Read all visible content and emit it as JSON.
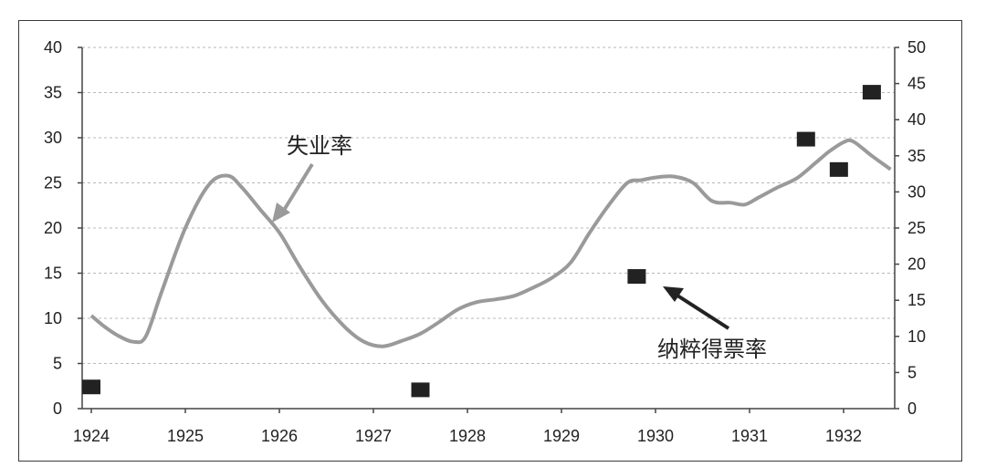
{
  "chart_data": {
    "type": "line",
    "title": "",
    "x_axis": {
      "range": [
        1924,
        1932.55
      ],
      "ticks": [
        1924,
        1925,
        1926,
        1927,
        1928,
        1929,
        1930,
        1931,
        1932
      ],
      "tick_labels": [
        "1924",
        "1925",
        "1926",
        "1927",
        "1928",
        "1929",
        "1930",
        "1931",
        "1932"
      ]
    },
    "y_axis_left": {
      "range": [
        0,
        40
      ],
      "ticks": [
        0,
        5,
        10,
        15,
        20,
        25,
        30,
        35,
        40
      ],
      "tick_labels": [
        "0",
        "5",
        "10",
        "15",
        "20",
        "25",
        "30",
        "35",
        "40"
      ]
    },
    "y_axis_right": {
      "range": [
        0,
        50
      ],
      "ticks": [
        0,
        5,
        10,
        15,
        20,
        25,
        30,
        35,
        40,
        45,
        50
      ],
      "tick_labels": [
        "0",
        "5",
        "10",
        "15",
        "20",
        "25",
        "30",
        "35",
        "40",
        "45",
        "50"
      ]
    },
    "grid": "horizontal dashed",
    "series": [
      {
        "name": "失业率",
        "type": "line",
        "axis": "left",
        "color": "#9a9a9a",
        "x": [
          1924.0,
          1924.15,
          1924.3,
          1924.45,
          1924.58,
          1924.75,
          1925.0,
          1925.25,
          1925.45,
          1925.6,
          1925.8,
          1926.0,
          1926.2,
          1926.45,
          1926.7,
          1926.9,
          1927.1,
          1927.3,
          1927.5,
          1927.7,
          1927.9,
          1928.1,
          1928.3,
          1928.5,
          1928.7,
          1928.9,
          1929.1,
          1929.3,
          1929.5,
          1929.7,
          1929.85,
          1930.0,
          1930.2,
          1930.4,
          1930.6,
          1930.8,
          1930.95,
          1931.1,
          1931.3,
          1931.5,
          1931.7,
          1931.85,
          1932.0,
          1932.1,
          1932.3,
          1932.5
        ],
        "y": [
          10.3,
          9.0,
          8.0,
          7.4,
          8.0,
          13.0,
          20.0,
          24.8,
          25.8,
          24.5,
          22.0,
          19.5,
          16.0,
          12.0,
          9.0,
          7.4,
          6.9,
          7.5,
          8.3,
          9.6,
          11.0,
          11.8,
          12.1,
          12.5,
          13.4,
          14.5,
          16.2,
          19.5,
          22.5,
          25.0,
          25.3,
          25.6,
          25.7,
          25.0,
          23.0,
          22.8,
          22.6,
          23.4,
          24.5,
          25.5,
          27.2,
          28.5,
          29.5,
          29.6,
          28.0,
          26.5
        ]
      },
      {
        "name": "纳粹得票率",
        "type": "scatter",
        "axis": "right",
        "color": "#222222",
        "x": [
          1924.0,
          1927.5,
          1929.8,
          1931.6,
          1931.95,
          1932.3
        ],
        "y": [
          3.0,
          2.6,
          18.3,
          37.3,
          33.1,
          43.8
        ]
      }
    ],
    "annotations": [
      {
        "text": "失业率",
        "target_series": "失业率"
      },
      {
        "text": "纳粹得票率",
        "target_series": "纳粹得票率"
      }
    ]
  }
}
